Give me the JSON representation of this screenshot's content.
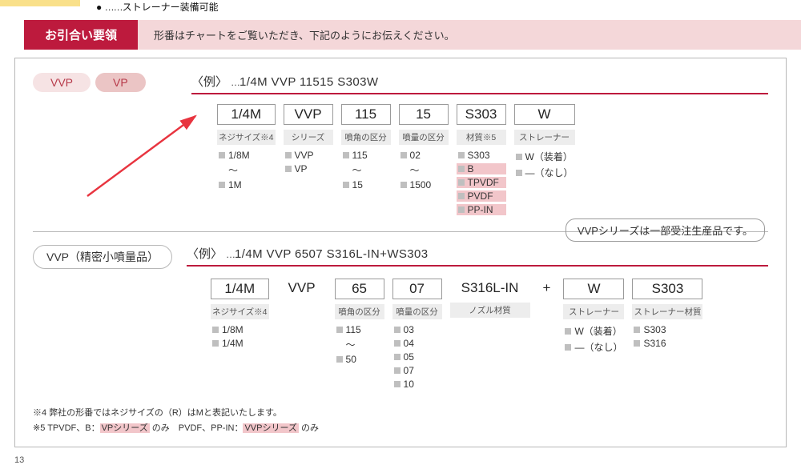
{
  "top_note": "ストレーナー装備可能",
  "header": {
    "badge": "お引合い要領",
    "strip": "形番はチャートをご覧いただき、下記のようにお伝えください。"
  },
  "sec1": {
    "pills": {
      "vvp": "VVP",
      "vp": "VP"
    },
    "example_lead": "〈例〉",
    "example_code": "1/4M VVP 11515 S303W",
    "cols": [
      {
        "val": "1/4M",
        "label": "ネジサイズ※4",
        "opts": [
          "1/8M",
          "〜",
          "1M"
        ],
        "nomark_idx": [
          1
        ]
      },
      {
        "val": "VVP",
        "label": "シリーズ",
        "opts": [
          "VVP",
          "VP"
        ]
      },
      {
        "val": "115",
        "label": "噴角の区分",
        "opts": [
          "115",
          "〜",
          "15"
        ],
        "nomark_idx": [
          1
        ]
      },
      {
        "val": "15",
        "label": "噴量の区分",
        "opts": [
          "02",
          "〜",
          "1500"
        ],
        "nomark_idx": [
          1
        ]
      },
      {
        "val": "S303",
        "label": "材質※5",
        "opts": [
          "S303",
          "B",
          "TPVDF",
          "PVDF",
          "PP-IN"
        ],
        "hl_idx": [
          1,
          2,
          3,
          4
        ]
      },
      {
        "val": "W",
        "label": "ストレーナー",
        "opts": [
          "W（装着）",
          "―（なし）"
        ]
      }
    ],
    "side_note": "VVPシリーズは一部受注生産品です。"
  },
  "sec2": {
    "pill": "VVP（精密小噴量品）",
    "example_lead": "〈例〉",
    "example_code": "1/4M VVP 6507 S316L-IN+WS303",
    "cols": [
      {
        "val": "1/4M",
        "boxed": true,
        "label": "ネジサイズ※4",
        "opts": [
          "1/8M",
          "1/4M"
        ]
      },
      {
        "val": "VVP",
        "boxed": false
      },
      {
        "val": "65",
        "boxed": true,
        "label": "噴角の区分",
        "opts": [
          "115",
          "〜",
          "50"
        ],
        "nomark_idx": [
          1
        ]
      },
      {
        "val": "07",
        "boxed": true,
        "label": "噴量の区分",
        "opts": [
          "03",
          "04",
          "05",
          "07",
          "10"
        ]
      },
      {
        "val": "S316L-IN",
        "boxed": false,
        "label": "ノズル材質",
        "wide": true
      },
      {
        "plus": "+"
      },
      {
        "val": "W",
        "boxed": true,
        "label": "ストレーナー",
        "opts": [
          "W（装着）",
          "―（なし）"
        ]
      },
      {
        "val": "S303",
        "boxed": true,
        "label": "ストレーナー材質",
        "opts": [
          "S303",
          "S316"
        ]
      }
    ]
  },
  "footnotes": {
    "f4": "※4 弊社の形番ではネジサイズの（R）はMと表記いたします。",
    "f5a": "※5 TPVDF、B：",
    "f5b_hl": "VPシリーズ",
    "f5c": " のみ　PVDF、PP-IN：",
    "f5d_hl": "VVPシリーズ",
    "f5e": " のみ"
  },
  "page_number": "13"
}
